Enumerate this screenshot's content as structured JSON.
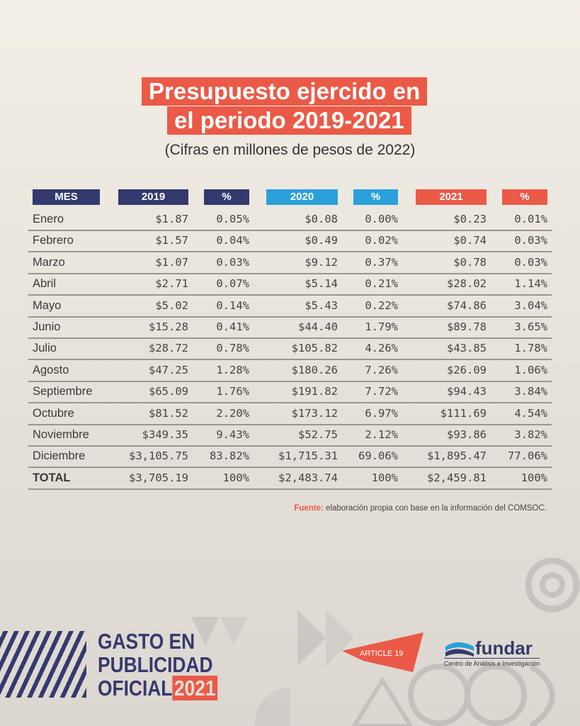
{
  "title": {
    "line1": "Presupuesto ejercido en",
    "line2": "el periodo 2019-2021"
  },
  "subtitle": "(Cifras en millones de pesos de 2022)",
  "colors": {
    "navy": "#343a6e",
    "blue": "#2aa1d9",
    "red": "#ea5a47"
  },
  "table": {
    "headers": [
      "MES",
      "2019",
      "%",
      "2020",
      "%",
      "2021",
      "%"
    ],
    "rows": [
      [
        "Enero",
        "$1.87",
        "0.05%",
        "$0.08",
        "0.00%",
        "$0.23",
        "0.01%"
      ],
      [
        "Febrero",
        "$1.57",
        "0.04%",
        "$0.49",
        "0.02%",
        "$0.74",
        "0.03%"
      ],
      [
        "Marzo",
        "$1.07",
        "0.03%",
        "$9.12",
        "0.37%",
        "$0.78",
        "0.03%"
      ],
      [
        "Abril",
        "$2.71",
        "0.07%",
        "$5.14",
        "0.21%",
        "$28.02",
        "1.14%"
      ],
      [
        "Mayo",
        "$5.02",
        "0.14%",
        "$5.43",
        "0.22%",
        "$74.86",
        "3.04%"
      ],
      [
        "Junio",
        "$15.28",
        "0.41%",
        "$44.40",
        "1.79%",
        "$89.78",
        "3.65%"
      ],
      [
        "Julio",
        "$28.72",
        "0.78%",
        "$105.82",
        "4.26%",
        "$43.85",
        "1.78%"
      ],
      [
        "Agosto",
        "$47.25",
        "1.28%",
        "$180.26",
        "7.26%",
        "$26.09",
        "1.06%"
      ],
      [
        "Septiembre",
        "$65.09",
        "1.76%",
        "$191.82",
        "7.72%",
        "$94.43",
        "3.84%"
      ],
      [
        "Octubre",
        "$81.52",
        "2.20%",
        "$173.12",
        "6.97%",
        "$111.69",
        "4.54%"
      ],
      [
        "Noviembre",
        "$349.35",
        "9.43%",
        "$52.75",
        "2.12%",
        "$93.86",
        "3.82%"
      ],
      [
        "Diciembre",
        "$3,105.75",
        "83.82%",
        "$1,715.31",
        "69.06%",
        "$1,895.47",
        "77.06%"
      ],
      [
        "TOTAL",
        "$3,705.19",
        "100%",
        "$2,483.74",
        "100%",
        "$2,459.81",
        "100%"
      ]
    ]
  },
  "source": {
    "label": "Fuente:",
    "text": "elaboración propia con base en la información del COMSOC."
  },
  "brand": {
    "line1": "GASTO EN",
    "line2": "PUBLICIDAD",
    "line3": "OFICIAL",
    "year": "2021"
  },
  "logos": {
    "article19": "ARTICLE 19",
    "fundar_name": "fundar",
    "fundar_sub": "Centro de Análisis e Investigación"
  }
}
